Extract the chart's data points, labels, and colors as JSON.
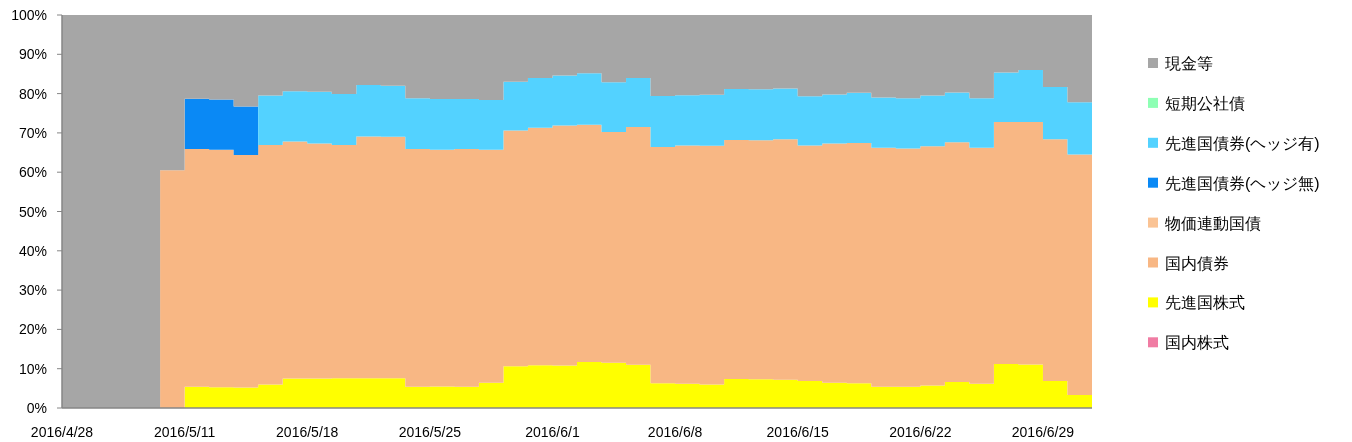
{
  "chart_data": {
    "type": "area",
    "stacked": true,
    "categories": [
      "2016/4/28",
      null,
      null,
      null,
      null,
      "2016/5/11",
      null,
      null,
      null,
      null,
      "2016/5/18",
      null,
      null,
      null,
      null,
      "2016/5/25",
      null,
      null,
      null,
      null,
      "2016/6/1",
      null,
      null,
      null,
      null,
      "2016/6/8",
      null,
      null,
      null,
      null,
      "2016/6/15",
      null,
      null,
      null,
      null,
      "2016/6/22",
      null,
      null,
      null,
      null,
      "2016/6/29",
      null,
      null
    ],
    "series": [
      {
        "name": "国内株式",
        "color": "#f07ca3",
        "values": [
          null,
          null,
          null,
          null,
          null,
          null,
          null,
          null,
          null,
          null,
          null,
          null,
          null,
          null,
          null,
          null,
          null,
          null,
          null,
          null,
          null,
          null,
          null,
          null,
          null,
          null,
          null,
          null,
          null,
          null,
          null,
          null,
          null,
          null,
          null,
          null,
          null,
          null,
          null,
          null,
          null,
          null,
          null
        ]
      },
      {
        "name": "先進国株式",
        "color": "#ffff00",
        "values": [
          null,
          null,
          null,
          null,
          null,
          5.4,
          5.3,
          5.2,
          6.0,
          7.5,
          7.5,
          7.6,
          7.6,
          7.6,
          5.4,
          5.5,
          5.4,
          6.4,
          10.6,
          10.9,
          10.8,
          11.7,
          11.5,
          11.0,
          6.3,
          6.2,
          6.0,
          7.4,
          7.3,
          7.2,
          6.9,
          6.4,
          6.3,
          5.4,
          5.4,
          5.7,
          6.6,
          6.2,
          11.2,
          11.1,
          6.9,
          3.3,
          3.3
        ]
      },
      {
        "name": "国内債券",
        "color": "#f8b784",
        "values": [
          null,
          null,
          null,
          null,
          60.5,
          60.5,
          60.4,
          59.2,
          60.9,
          60.3,
          59.8,
          59.3,
          61.5,
          61.4,
          60.5,
          60.2,
          60.5,
          59.3,
          60.0,
          60.4,
          61.1,
          60.4,
          58.7,
          60.5,
          60.1,
          60.6,
          60.7,
          60.8,
          60.8,
          61.2,
          59.9,
          60.9,
          61.1,
          60.8,
          60.6,
          60.9,
          61.0,
          60.0,
          61.6,
          61.7,
          61.5,
          61.2,
          61.2
        ]
      },
      {
        "name": "物価連動国債",
        "color": "#fac394",
        "values": [
          null,
          null,
          null,
          null,
          null,
          null,
          null,
          null,
          null,
          null,
          null,
          null,
          null,
          null,
          null,
          null,
          null,
          null,
          null,
          null,
          null,
          null,
          null,
          null,
          null,
          null,
          null,
          null,
          null,
          null,
          null,
          null,
          null,
          null,
          null,
          null,
          null,
          null,
          null,
          null,
          null,
          null,
          null
        ]
      },
      {
        "name": "先進国債券(ヘッジ無)",
        "color": "#0a89f5",
        "values": [
          null,
          null,
          null,
          null,
          null,
          12.8,
          12.8,
          12.3,
          0,
          null,
          null,
          null,
          null,
          null,
          null,
          null,
          null,
          null,
          null,
          null,
          null,
          null,
          null,
          null,
          null,
          null,
          null,
          null,
          null,
          null,
          null,
          null,
          null,
          null,
          null,
          null,
          null,
          null,
          null,
          null,
          null,
          null,
          null
        ]
      },
      {
        "name": "先進国債券(ヘッジ有)",
        "color": "#53d2ff",
        "values": [
          null,
          null,
          null,
          null,
          null,
          null,
          null,
          null,
          12.6,
          12.8,
          13.2,
          13.0,
          13.1,
          13.0,
          12.9,
          12.9,
          12.7,
          12.7,
          12.4,
          12.7,
          12.7,
          13.1,
          12.7,
          12.5,
          13.0,
          12.8,
          13.0,
          13.0,
          13.0,
          12.9,
          12.5,
          12.5,
          12.8,
          12.8,
          12.8,
          12.9,
          12.7,
          12.6,
          12.6,
          13.2,
          13.3,
          13.3,
          13.3
        ]
      },
      {
        "name": "短期公社債",
        "color": "#8effb4",
        "values": [
          null,
          null,
          null,
          null,
          null,
          null,
          null,
          null,
          null,
          null,
          null,
          null,
          null,
          null,
          null,
          null,
          null,
          null,
          null,
          null,
          null,
          null,
          null,
          null,
          null,
          null,
          null,
          null,
          null,
          null,
          null,
          null,
          null,
          null,
          null,
          null,
          null,
          null,
          null,
          null,
          null,
          null,
          null
        ]
      },
      {
        "name": "現金等",
        "color": "#a6a6a6",
        "values": [
          100,
          100,
          100,
          100,
          39.5,
          21.3,
          21.5,
          23.3,
          20.5,
          19.4,
          19.5,
          20.1,
          17.8,
          18.0,
          21.2,
          21.4,
          21.4,
          21.6,
          17.0,
          16.0,
          15.4,
          14.8,
          17.1,
          16.0,
          20.6,
          20.4,
          20.3,
          18.8,
          18.9,
          18.7,
          20.7,
          20.2,
          19.8,
          21.0,
          21.2,
          20.5,
          19.7,
          21.2,
          14.6,
          14.0,
          18.3,
          22.2,
          22.2
        ]
      }
    ],
    "ylim": [
      0,
      100
    ],
    "yticks": [
      {
        "value": 0,
        "label": "0%"
      },
      {
        "value": 10,
        "label": "10%"
      },
      {
        "value": 20,
        "label": "20%"
      },
      {
        "value": 30,
        "label": "30%"
      },
      {
        "value": 40,
        "label": "40%"
      },
      {
        "value": 50,
        "label": "50%"
      },
      {
        "value": 60,
        "label": "60%"
      },
      {
        "value": 70,
        "label": "70%"
      },
      {
        "value": 80,
        "label": "80%"
      },
      {
        "value": 90,
        "label": "90%"
      },
      {
        "value": 100,
        "label": "100%"
      }
    ],
    "legend": "right"
  }
}
